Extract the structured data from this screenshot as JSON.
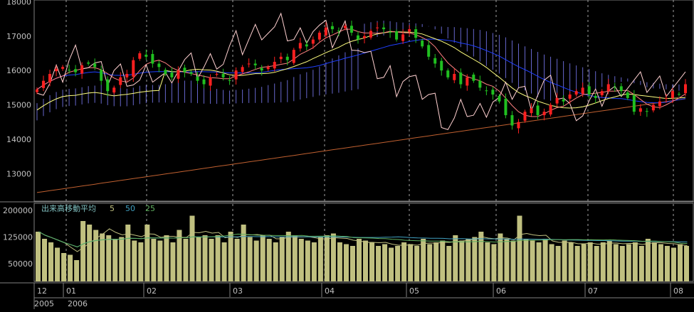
{
  "chart_data": [
    {
      "type": "line",
      "panel": "price",
      "description_source": "candlestick stock chart with moving averages and ichimoku cloud",
      "y_ticks": [
        18000,
        17000,
        16000,
        15000,
        14000,
        13000
      ],
      "ylim": [
        12200,
        18050
      ],
      "grid": true,
      "series_colors": {
        "up_candle": "#ff2020",
        "down_candle": "#20c020",
        "ma_short": "#ff8080",
        "ma_mid": "#ffff80",
        "ma_long": "#2040ff",
        "ma_200": "#c06030",
        "lagging_span": "#ffd0d0",
        "cloud": "#8080ff"
      },
      "approx_close": [
        15450,
        15700,
        15900,
        16050,
        16100,
        16000,
        15950,
        16150,
        16200,
        16100,
        15700,
        15400,
        15500,
        15800,
        15900,
        16300,
        16500,
        16400,
        16200,
        16100,
        15900,
        15800,
        16000,
        15950,
        15900,
        15700,
        15600,
        15800,
        15900,
        15800,
        15700,
        16000,
        16100,
        16200,
        16150,
        16000,
        16100,
        16250,
        16400,
        16300,
        16600,
        16800,
        16700,
        16900,
        17100,
        17250,
        17200,
        17150,
        17300,
        17100,
        16900,
        17000,
        17150,
        17250,
        17200,
        17100,
        16900,
        17050,
        17200,
        16950,
        16700,
        16400,
        16200,
        16000,
        15800,
        15900,
        15600,
        15800,
        15700,
        15500,
        15400,
        15300,
        15100,
        14700,
        14400,
        14500,
        14800,
        14900,
        14700,
        14800,
        15000,
        15200,
        15100,
        15300,
        15400,
        15500,
        15300,
        15200,
        15400,
        15600,
        15500,
        15400,
        15200,
        14800,
        14900,
        14800,
        15000,
        15100,
        15200,
        15400,
        15300,
        15600
      ]
    },
    {
      "type": "bar",
      "panel": "volume",
      "title": "出来高移動平均",
      "periods": [
        "5",
        "50",
        "25"
      ],
      "period_colors": [
        "#c0c080",
        "#40a0c0",
        "#60b060"
      ],
      "y_ticks": [
        200000,
        125000,
        50000
      ],
      "y_tick_labels": [
        "200000",
        "125000",
        "50000"
      ],
      "ylim": [
        0,
        220000
      ],
      "grid": true,
      "bar_color": "#c0c080",
      "approx_values": [
        140000,
        120000,
        110000,
        95000,
        80000,
        75000,
        60000,
        170000,
        160000,
        145000,
        135000,
        130000,
        120000,
        125000,
        160000,
        115000,
        110000,
        160000,
        120000,
        115000,
        130000,
        110000,
        145000,
        120000,
        185000,
        125000,
        130000,
        120000,
        130000,
        110000,
        140000,
        120000,
        160000,
        125000,
        115000,
        130000,
        120000,
        110000,
        125000,
        140000,
        130000,
        120000,
        115000,
        110000,
        125000,
        130000,
        135000,
        110000,
        105000,
        100000,
        120000,
        115000,
        110000,
        100000,
        105000,
        95000,
        100000,
        110000,
        105000,
        100000,
        120000,
        105000,
        110000,
        115000,
        100000,
        130000,
        115000,
        120000,
        125000,
        140000,
        110000,
        105000,
        135000,
        120000,
        115000,
        185000,
        120000,
        115000,
        110000,
        120000,
        105000,
        100000,
        115000,
        110000,
        100000,
        105000,
        110000,
        100000,
        110000,
        115000,
        105000,
        100000,
        105000,
        110000,
        100000,
        120000,
        110000,
        105000,
        100000,
        95000,
        105000,
        100000
      ]
    },
    {
      "type": "table",
      "panel": "time-axis",
      "month_labels": [
        "12",
        "01",
        "02",
        "03",
        "04",
        "05",
        "06",
        "07",
        "08"
      ],
      "year_labels": [
        "2005",
        "2006"
      ]
    }
  ]
}
